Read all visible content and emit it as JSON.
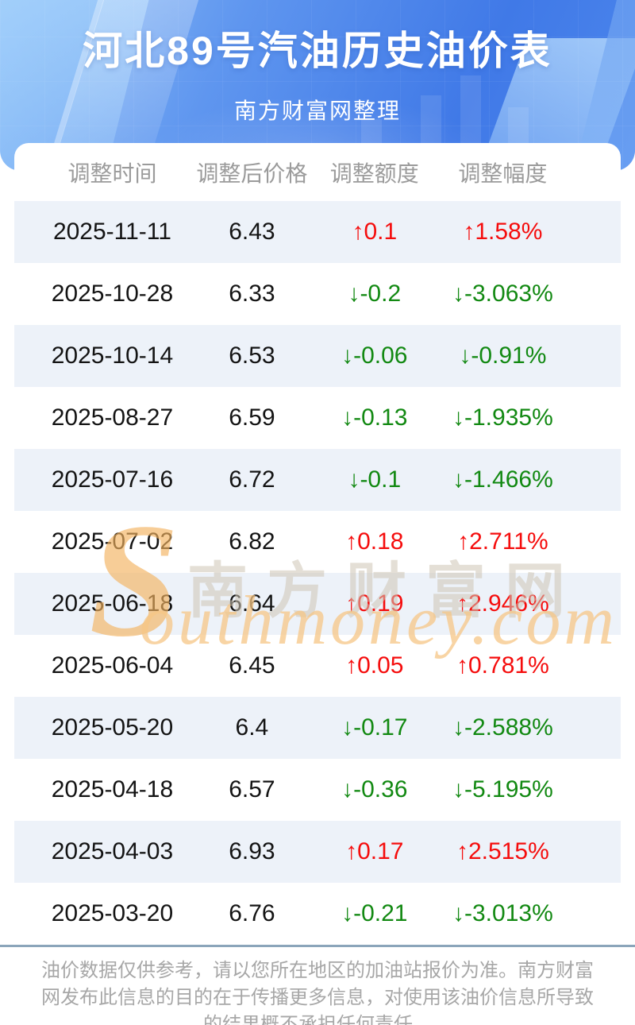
{
  "banner": {
    "title": "河北89号汽油历史油价表",
    "subtitle": "南方财富网整理"
  },
  "table": {
    "columns": {
      "time": "调整时间",
      "price": "调整后价格",
      "change": "调整额度",
      "percent": "调整幅度"
    },
    "rows": [
      {
        "date": "2025-11-11",
        "price": "6.43",
        "change": "↑0.1",
        "percent": "↑1.58%",
        "trend": "up"
      },
      {
        "date": "2025-10-28",
        "price": "6.33",
        "change": "↓-0.2",
        "percent": "↓-3.063%",
        "trend": "down"
      },
      {
        "date": "2025-10-14",
        "price": "6.53",
        "change": "↓-0.06",
        "percent": "↓-0.91%",
        "trend": "down"
      },
      {
        "date": "2025-08-27",
        "price": "6.59",
        "change": "↓-0.13",
        "percent": "↓-1.935%",
        "trend": "down"
      },
      {
        "date": "2025-07-16",
        "price": "6.72",
        "change": "↓-0.1",
        "percent": "↓-1.466%",
        "trend": "down"
      },
      {
        "date": "2025-07-02",
        "price": "6.82",
        "change": "↑0.18",
        "percent": "↑2.711%",
        "trend": "up"
      },
      {
        "date": "2025-06-18",
        "price": "6.64",
        "change": "↑0.19",
        "percent": "↑2.946%",
        "trend": "up"
      },
      {
        "date": "2025-06-04",
        "price": "6.45",
        "change": "↑0.05",
        "percent": "↑0.781%",
        "trend": "up"
      },
      {
        "date": "2025-05-20",
        "price": "6.4",
        "change": "↓-0.17",
        "percent": "↓-2.588%",
        "trend": "down"
      },
      {
        "date": "2025-04-18",
        "price": "6.57",
        "change": "↓-0.36",
        "percent": "↓-5.195%",
        "trend": "down"
      },
      {
        "date": "2025-04-03",
        "price": "6.93",
        "change": "↑0.17",
        "percent": "↑2.515%",
        "trend": "up"
      },
      {
        "date": "2025-03-20",
        "price": "6.76",
        "change": "↓-0.21",
        "percent": "↓-3.013%",
        "trend": "down"
      }
    ]
  },
  "watermark": {
    "s": "S",
    "cn": "南方财富网",
    "en": "outhmoney.com"
  },
  "footer": {
    "disclaimer": "油价数据仅供参考，请以您所在地区的加油站报价为准。南方财富网发布此信息的目的在于传播更多信息，对使用该油价信息所导致的结果概不承担任何责任。"
  },
  "colors": {
    "up": "#f50d0d",
    "down": "#128912",
    "banner_blue": "#4079e7",
    "row_alt": "#edf2f9",
    "divider": "#8ba5ba"
  }
}
